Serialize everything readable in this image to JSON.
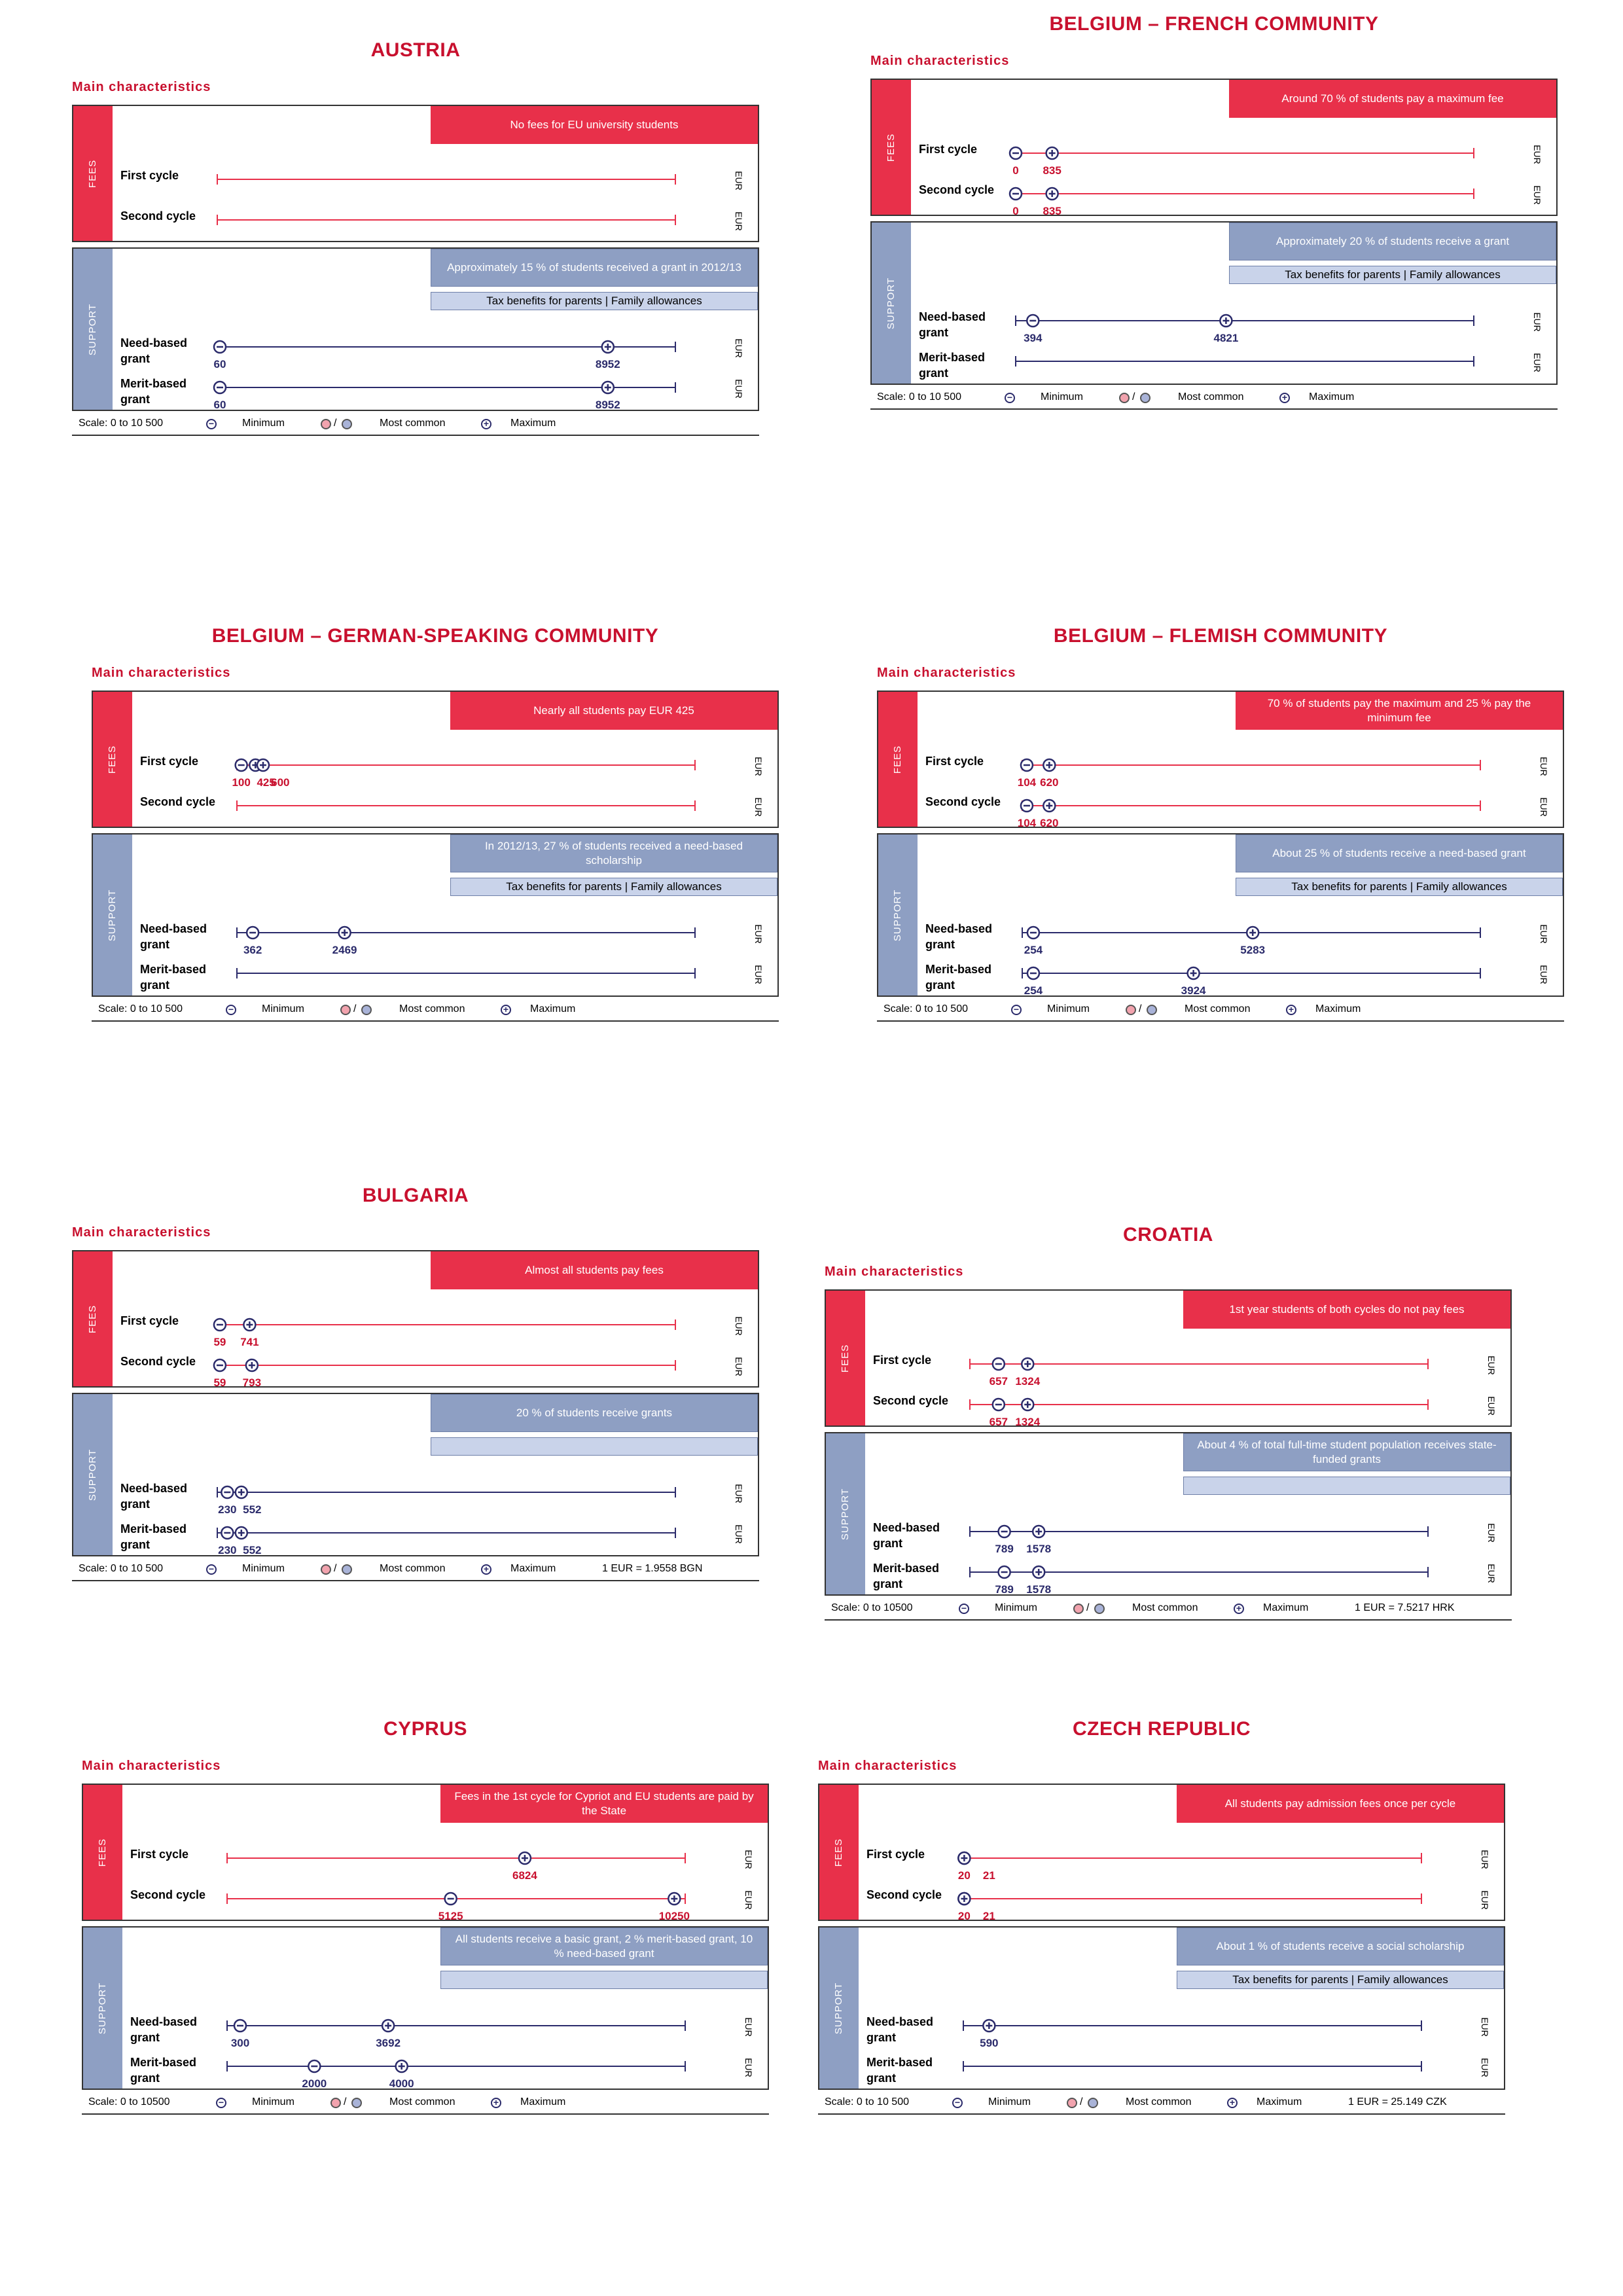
{
  "common": {
    "sub_heading": "Main characteristics",
    "fees_label": "FEES",
    "support_label": "SUPPORT",
    "unit": "EUR",
    "legend_minimum": "Minimum",
    "legend_slash": "/",
    "legend_most_common": "Most common",
    "legend_maximum": "Maximum",
    "labels": {
      "first": "First cycle",
      "second": "Second cycle",
      "need": "Need-based grant",
      "merit": "Merit-based grant"
    },
    "colors": {
      "fees": "#e8304a",
      "support": "#8e9fc3",
      "support_light": "#c9d3ea",
      "title": "#c8102e",
      "grant_line": "#2b2b6b"
    }
  },
  "chart_data": [
    {
      "type": "range",
      "title": "AUSTRIA",
      "scale_text": "Scale: 0 to 10 500",
      "exchange": "",
      "xlim": [
        0,
        10500
      ],
      "fees_banner": "No fees for EU university students",
      "support_banner": "Approximately 15 % of students received a grant in 2012/13",
      "support_banner2": "Tax benefits for parents | Family allowances",
      "rows": {
        "first": {
          "marks": []
        },
        "second": {
          "marks": []
        },
        "need": {
          "marks": [
            {
              "kind": "min",
              "value": 60,
              "label": "60"
            },
            {
              "kind": "max",
              "value": 8952,
              "label": "8952"
            }
          ]
        },
        "merit": {
          "marks": [
            {
              "kind": "min",
              "value": 60,
              "label": "60"
            },
            {
              "kind": "max",
              "value": 8952,
              "label": "8952"
            }
          ]
        }
      }
    },
    {
      "type": "range",
      "title": "BELGIUM – FRENCH COMMUNITY",
      "scale_text": "Scale: 0 to 10 500",
      "exchange": "",
      "xlim": [
        0,
        10500
      ],
      "fees_banner": "Around 70 % of students pay a maximum fee",
      "support_banner": "Approximately 20 % of students receive a grant",
      "support_banner2": "Tax benefits for parents | Family allowances",
      "rows": {
        "first": {
          "marks": [
            {
              "kind": "min",
              "value": 0,
              "label": "0"
            },
            {
              "kind": "max",
              "value": 835,
              "label": "835"
            }
          ]
        },
        "second": {
          "marks": [
            {
              "kind": "min",
              "value": 0,
              "label": "0"
            },
            {
              "kind": "max",
              "value": 835,
              "label": "835"
            }
          ]
        },
        "need": {
          "marks": [
            {
              "kind": "min",
              "value": 394,
              "label": "394"
            },
            {
              "kind": "max",
              "value": 4821,
              "label": "4821"
            }
          ]
        },
        "merit": {
          "marks": []
        }
      }
    },
    {
      "type": "range",
      "title": "BELGIUM – GERMAN-SPEAKING COMMUNITY",
      "scale_text": "Scale: 0 to 10 500",
      "exchange": "",
      "xlim": [
        0,
        10500
      ],
      "fees_banner": "Nearly all students pay EUR 425",
      "support_banner": "In 2012/13, 27 % of students received a need-based scholarship",
      "support_banner2": "Tax benefits for parents | Family allowances",
      "rows": {
        "first": {
          "marks": [
            {
              "kind": "min",
              "value": 100,
              "label": "100"
            },
            {
              "kind": "common",
              "value": 425,
              "label": "425"
            },
            {
              "kind": "max",
              "value": 600,
              "label": "600"
            }
          ]
        },
        "second": {
          "marks": []
        },
        "need": {
          "marks": [
            {
              "kind": "min",
              "value": 362,
              "label": "362"
            },
            {
              "kind": "max",
              "value": 2469,
              "label": "2469"
            }
          ]
        },
        "merit": {
          "marks": []
        }
      }
    },
    {
      "type": "range",
      "title": "BELGIUM – FLEMISH COMMUNITY",
      "scale_text": "Scale: 0 to 10 500",
      "exchange": "",
      "xlim": [
        0,
        10500
      ],
      "fees_banner": "70 % of students pay the maximum and 25 % pay the minimum fee",
      "support_banner": "About 25 % of students receive a need-based grant",
      "support_banner2": "Tax benefits for parents | Family allowances",
      "rows": {
        "first": {
          "marks": [
            {
              "kind": "min",
              "value": 104,
              "label": "104"
            },
            {
              "kind": "common",
              "value": 620,
              "label": "620"
            }
          ]
        },
        "second": {
          "marks": [
            {
              "kind": "min",
              "value": 104,
              "label": "104"
            },
            {
              "kind": "common",
              "value": 620,
              "label": "620"
            }
          ]
        },
        "need": {
          "marks": [
            {
              "kind": "min",
              "value": 254,
              "label": "254"
            },
            {
              "kind": "max",
              "value": 5283,
              "label": "5283"
            }
          ]
        },
        "merit": {
          "marks": [
            {
              "kind": "min",
              "value": 254,
              "label": "254"
            },
            {
              "kind": "max",
              "value": 3924,
              "label": "3924"
            }
          ]
        }
      }
    },
    {
      "type": "range",
      "title": "BULGARIA",
      "scale_text": "Scale: 0 to 10 500",
      "exchange": "1 EUR = 1.9558 BGN",
      "xlim": [
        0,
        10500
      ],
      "fees_banner": "Almost all students pay fees",
      "support_banner": "20 % of students receive grants",
      "support_banner2": "",
      "rows": {
        "first": {
          "marks": [
            {
              "kind": "min",
              "value": 59,
              "label": "59"
            },
            {
              "kind": "max",
              "value": 741,
              "label": "741"
            }
          ]
        },
        "second": {
          "marks": [
            {
              "kind": "min",
              "value": 59,
              "label": "59"
            },
            {
              "kind": "max",
              "value": 793,
              "label": "793"
            }
          ]
        },
        "need": {
          "marks": [
            {
              "kind": "min",
              "value": 230,
              "label": "230"
            },
            {
              "kind": "max",
              "value": 552,
              "label": "552"
            }
          ]
        },
        "merit": {
          "marks": [
            {
              "kind": "min",
              "value": 230,
              "label": "230"
            },
            {
              "kind": "max",
              "value": 552,
              "label": "552"
            }
          ]
        }
      }
    },
    {
      "type": "range",
      "title": "CROATIA",
      "scale_text": "Scale: 0 to 10500",
      "exchange": "1 EUR = 7.5217 HRK",
      "xlim": [
        0,
        10500
      ],
      "fees_banner": "1st year students of both cycles do not pay fees",
      "support_banner": "About 4 % of total full-time student population receives state-funded grants",
      "support_banner2": "",
      "rows": {
        "first": {
          "marks": [
            {
              "kind": "min",
              "value": 657,
              "label": "657"
            },
            {
              "kind": "max",
              "value": 1324,
              "label": "1324"
            }
          ]
        },
        "second": {
          "marks": [
            {
              "kind": "min",
              "value": 657,
              "label": "657"
            },
            {
              "kind": "max",
              "value": 1324,
              "label": "1324"
            }
          ]
        },
        "need": {
          "marks": [
            {
              "kind": "min",
              "value": 789,
              "label": "789"
            },
            {
              "kind": "max",
              "value": 1578,
              "label": "1578"
            }
          ]
        },
        "merit": {
          "marks": [
            {
              "kind": "min",
              "value": 789,
              "label": "789"
            },
            {
              "kind": "max",
              "value": 1578,
              "label": "1578"
            }
          ]
        }
      }
    },
    {
      "type": "range",
      "title": "CYPRUS",
      "scale_text": "Scale: 0 to 10500",
      "exchange": "",
      "xlim": [
        0,
        10500
      ],
      "fees_banner": "Fees in the 1st cycle for Cypriot and EU students are paid by the State",
      "support_banner": "All students receive a basic grant, 2 % merit-based grant, 10 % need-based grant",
      "support_banner2": "",
      "rows": {
        "first": {
          "marks": [
            {
              "kind": "max",
              "value": 6824,
              "label": "6824"
            }
          ]
        },
        "second": {
          "marks": [
            {
              "kind": "min",
              "value": 5125,
              "label": "5125"
            },
            {
              "kind": "max",
              "value": 10250,
              "label": "10250"
            }
          ]
        },
        "need": {
          "marks": [
            {
              "kind": "min",
              "value": 300,
              "label": "300"
            },
            {
              "kind": "max",
              "value": 3692,
              "label": "3692"
            }
          ]
        },
        "merit": {
          "marks": [
            {
              "kind": "min",
              "value": 2000,
              "label": "2000"
            },
            {
              "kind": "max",
              "value": 4000,
              "label": "4000"
            }
          ]
        }
      }
    },
    {
      "type": "range",
      "title": "CZECH REPUBLIC",
      "scale_text": "Scale: 0 to 10 500",
      "exchange": "1 EUR = 25.149 CZK",
      "xlim": [
        0,
        10500
      ],
      "fees_banner": "All students pay admission fees once per cycle",
      "support_banner": "About 1 % of students receive a social scholarship",
      "support_banner2": "Tax benefits for parents | Family allowances",
      "rows": {
        "first": {
          "marks": [
            {
              "kind": "common",
              "value": 20,
              "label": "20"
            },
            {
              "kind": "max",
              "value": 21,
              "label": "21"
            }
          ]
        },
        "second": {
          "marks": [
            {
              "kind": "common",
              "value": 20,
              "label": "20"
            },
            {
              "kind": "max",
              "value": 21,
              "label": "21"
            }
          ]
        },
        "need": {
          "marks": [
            {
              "kind": "max",
              "value": 590,
              "label": "590"
            }
          ]
        },
        "merit": {
          "marks": []
        }
      }
    }
  ]
}
